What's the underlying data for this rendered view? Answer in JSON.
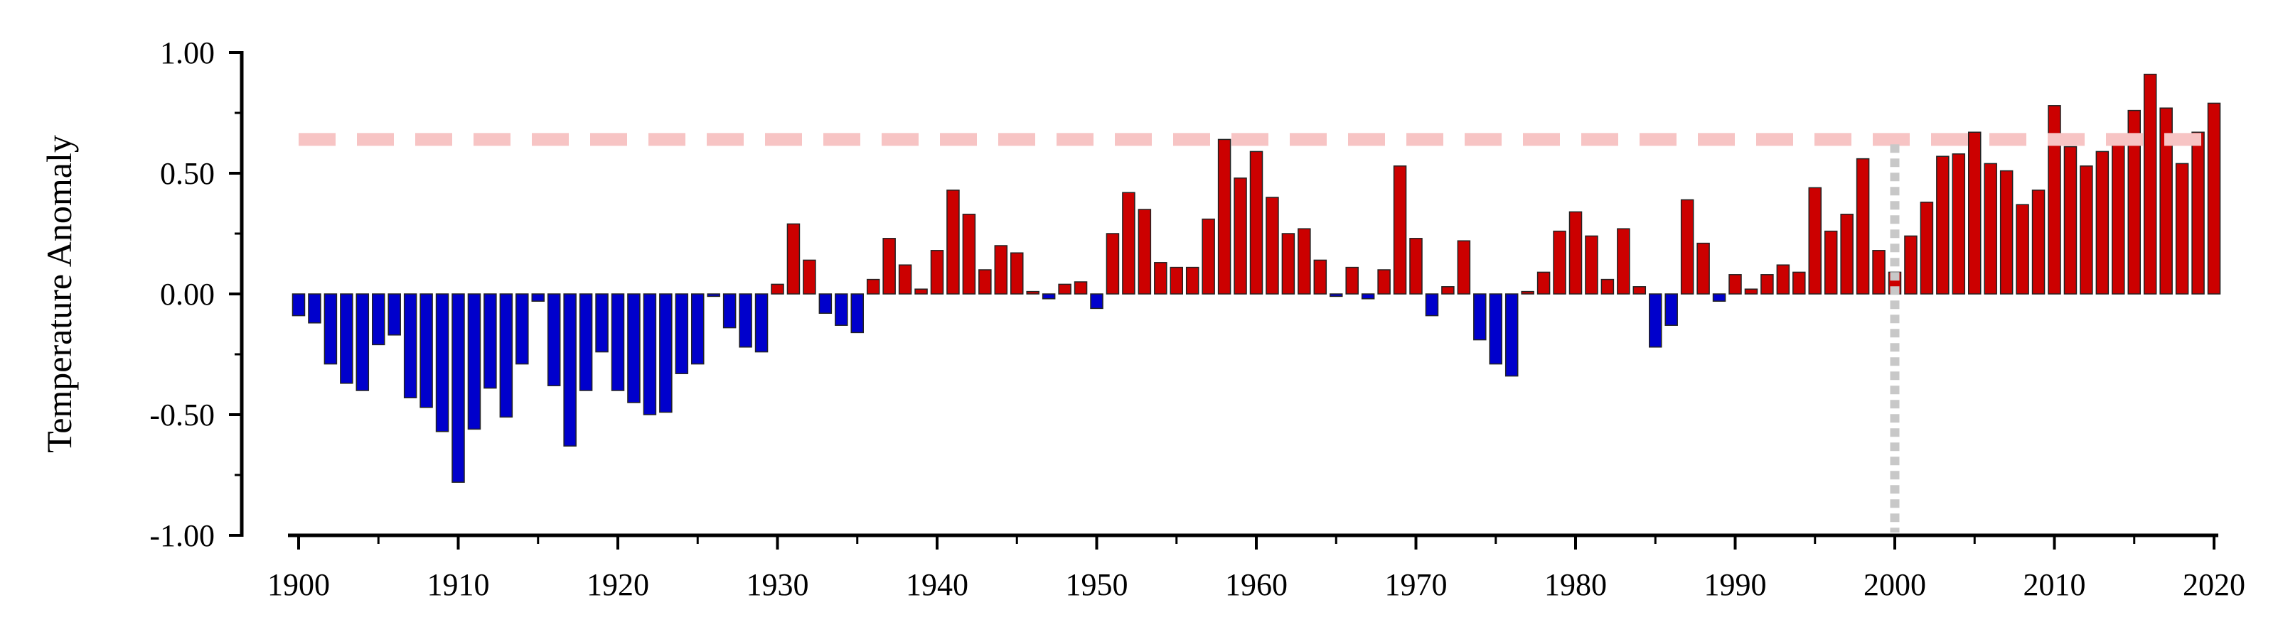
{
  "chart_data": {
    "type": "bar",
    "ylabel": "Temperature Anomaly",
    "xlabel": "",
    "title": "",
    "ylim": [
      -1.0,
      1.0
    ],
    "xlim": [
      1900,
      2020
    ],
    "y_ticks": [
      "1.00",
      "0.50",
      "0.00",
      "-0.50",
      "-1.00"
    ],
    "y_tick_values": [
      1.0,
      0.5,
      0.0,
      -0.5,
      -1.0
    ],
    "x_ticks": [
      "1900",
      "1910",
      "1920",
      "1930",
      "1940",
      "1950",
      "1960",
      "1970",
      "1980",
      "1990",
      "2000",
      "2010",
      "2020"
    ],
    "x_tick_values": [
      1900,
      1910,
      1920,
      1930,
      1940,
      1950,
      1960,
      1970,
      1980,
      1990,
      2000,
      2010,
      2020
    ],
    "years": [
      1900,
      1901,
      1902,
      1903,
      1904,
      1905,
      1906,
      1907,
      1908,
      1909,
      1910,
      1911,
      1912,
      1913,
      1914,
      1915,
      1916,
      1917,
      1918,
      1919,
      1920,
      1921,
      1922,
      1923,
      1924,
      1925,
      1926,
      1927,
      1928,
      1929,
      1930,
      1931,
      1932,
      1933,
      1934,
      1935,
      1936,
      1937,
      1938,
      1939,
      1940,
      1941,
      1942,
      1943,
      1944,
      1945,
      1946,
      1947,
      1948,
      1949,
      1950,
      1951,
      1952,
      1953,
      1954,
      1955,
      1956,
      1957,
      1958,
      1959,
      1960,
      1961,
      1962,
      1963,
      1964,
      1965,
      1966,
      1967,
      1968,
      1969,
      1970,
      1971,
      1972,
      1973,
      1974,
      1975,
      1976,
      1977,
      1978,
      1979,
      1980,
      1981,
      1982,
      1983,
      1984,
      1985,
      1986,
      1987,
      1988,
      1989,
      1990,
      1991,
      1992,
      1993,
      1994,
      1995,
      1996,
      1997,
      1998,
      1999,
      2000,
      2001,
      2002,
      2003,
      2004,
      2005,
      2006,
      2007,
      2008,
      2009,
      2010,
      2011,
      2012,
      2013,
      2014,
      2015,
      2016,
      2017,
      2018,
      2019,
      2020
    ],
    "values": [
      -0.09,
      -0.12,
      -0.29,
      -0.37,
      -0.4,
      -0.21,
      -0.17,
      -0.43,
      -0.47,
      -0.57,
      -0.78,
      -0.56,
      -0.39,
      -0.51,
      -0.29,
      -0.03,
      -0.38,
      -0.63,
      -0.4,
      -0.24,
      -0.4,
      -0.45,
      -0.5,
      -0.49,
      -0.33,
      -0.29,
      -0.01,
      -0.14,
      -0.22,
      -0.24,
      0.04,
      0.29,
      0.14,
      -0.08,
      -0.13,
      -0.16,
      0.06,
      0.23,
      0.12,
      0.02,
      0.18,
      0.43,
      0.33,
      0.1,
      0.2,
      0.17,
      0.01,
      -0.02,
      0.04,
      0.05,
      -0.06,
      0.25,
      0.42,
      0.35,
      0.13,
      0.11,
      0.11,
      0.31,
      0.64,
      0.48,
      0.59,
      0.4,
      0.25,
      0.27,
      0.14,
      -0.01,
      0.11,
      -0.02,
      0.1,
      0.53,
      0.23,
      -0.09,
      0.03,
      0.22,
      -0.19,
      -0.29,
      -0.34,
      0.01,
      0.09,
      0.26,
      0.34,
      0.24,
      0.06,
      0.27,
      0.03,
      -0.22,
      -0.13,
      0.39,
      0.21,
      -0.03,
      0.08,
      0.02,
      0.08,
      0.12,
      0.09,
      0.44,
      0.26,
      0.33,
      0.56,
      0.18,
      0.09,
      0.24,
      0.38,
      0.57,
      0.58,
      0.67,
      0.54,
      0.51,
      0.37,
      0.43,
      0.78,
      0.61,
      0.53,
      0.59,
      0.62,
      0.76,
      0.91,
      0.77,
      0.54,
      0.67,
      0.79
    ],
    "positive_color": "#cc0000",
    "negative_color": "#0000cc",
    "bar_edge_color": "#222222",
    "reference_line": {
      "y": 0.64,
      "style": "dashed",
      "color": "#f7c4c4"
    },
    "vertical_marker": {
      "x": 2000,
      "y_top": 0.62,
      "style": "dotted",
      "color": "#c8c8c8"
    },
    "grid": false
  }
}
